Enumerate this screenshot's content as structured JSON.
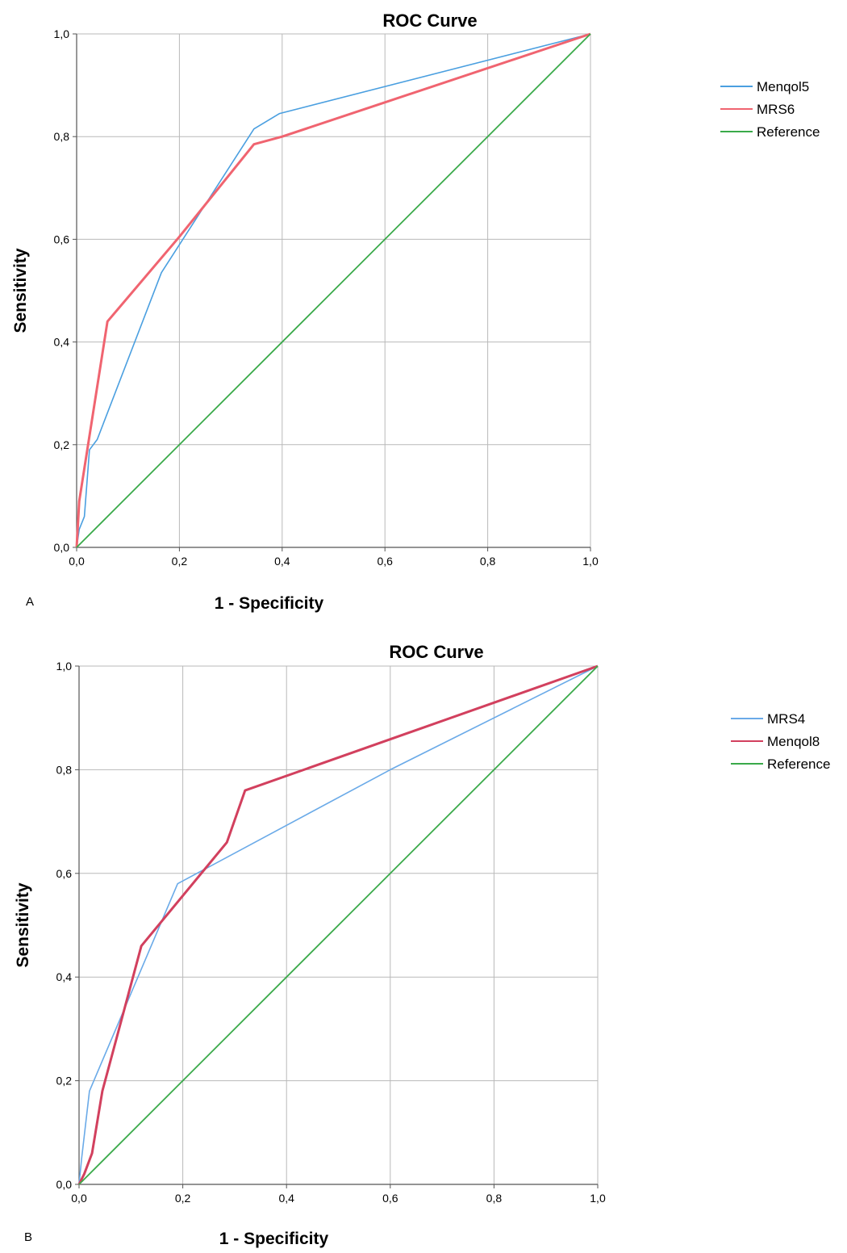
{
  "chart_data": [
    {
      "type": "line",
      "panel_label": "A",
      "title": "ROC Curve",
      "xlabel": "1 - Specificity",
      "ylabel": "Sensitivity",
      "xlim": [
        0,
        1
      ],
      "ylim": [
        0,
        1
      ],
      "x_ticks": [
        "0,0",
        "0,2",
        "0,4",
        "0,6",
        "0,8",
        "1,0"
      ],
      "y_ticks": [
        "0,0",
        "0,2",
        "0,4",
        "0,6",
        "0,8",
        "1,0"
      ],
      "grid": true,
      "legend_position": "right",
      "series": [
        {
          "name": "Menqol5",
          "color": "#4a9fe0",
          "x": [
            0,
            0.005,
            0.015,
            0.025,
            0.04,
            0.165,
            0.345,
            0.395,
            1
          ],
          "y": [
            0,
            0.035,
            0.06,
            0.19,
            0.21,
            0.535,
            0.815,
            0.845,
            1
          ]
        },
        {
          "name": "MRS6",
          "color": "#f06470",
          "x": [
            0,
            0.005,
            0.06,
            0.2,
            0.345,
            0.4,
            1
          ],
          "y": [
            0,
            0.09,
            0.44,
            0.605,
            0.785,
            0.8,
            1
          ]
        },
        {
          "name": "Reference",
          "color": "#3aaa4a",
          "x": [
            0,
            1
          ],
          "y": [
            0,
            1
          ]
        }
      ]
    },
    {
      "type": "line",
      "panel_label": "B",
      "title": "ROC Curve",
      "xlabel": "1 - Specificity",
      "ylabel": "Sensitivity",
      "xlim": [
        0,
        1
      ],
      "ylim": [
        0,
        1
      ],
      "x_ticks": [
        "0,0",
        "0,2",
        "0,4",
        "0,6",
        "0,8",
        "1,0"
      ],
      "y_ticks": [
        "0,0",
        "0,2",
        "0,4",
        "0,6",
        "0,8",
        "1,0"
      ],
      "grid": true,
      "legend_position": "right",
      "series": [
        {
          "name": "MRS4",
          "color": "#6aaae8",
          "x": [
            0,
            0.005,
            0.02,
            0.19,
            0.6,
            1
          ],
          "y": [
            0,
            0.05,
            0.18,
            0.58,
            0.8,
            1
          ]
        },
        {
          "name": "Menqol8",
          "color": "#d2405e",
          "x": [
            0,
            0.01,
            0.025,
            0.045,
            0.12,
            0.285,
            0.32,
            1
          ],
          "y": [
            0,
            0.02,
            0.06,
            0.18,
            0.46,
            0.66,
            0.76,
            1
          ]
        },
        {
          "name": "Reference",
          "color": "#3aaa4a",
          "x": [
            0,
            1
          ],
          "y": [
            0,
            1
          ]
        }
      ]
    }
  ]
}
